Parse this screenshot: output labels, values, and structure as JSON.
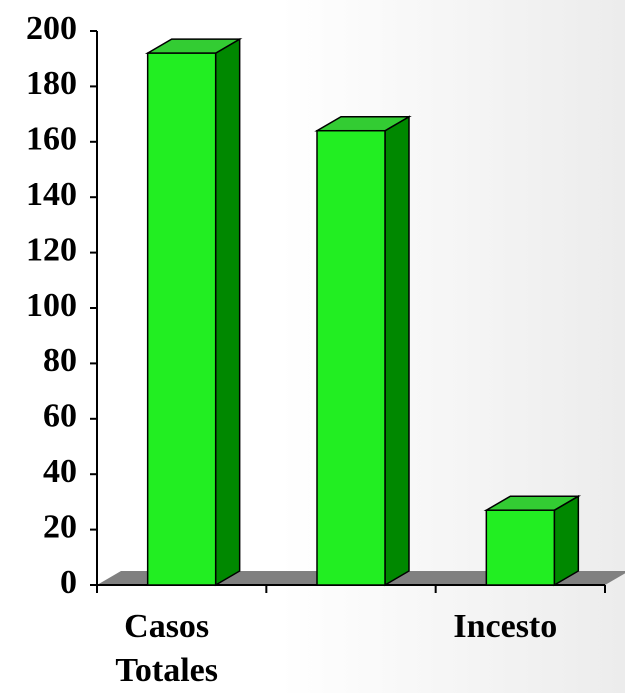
{
  "chart_data": {
    "type": "bar3d",
    "categories": [
      "Casos Totales",
      null,
      "Incesto"
    ],
    "values": [
      192,
      164,
      27
    ],
    "color": "#22ee22",
    "side_color": "#008800",
    "top_color": "#33cc33",
    "ylim": [
      0,
      200
    ],
    "yticks": [
      0,
      20,
      40,
      60,
      80,
      100,
      120,
      140,
      160,
      180,
      200
    ]
  }
}
